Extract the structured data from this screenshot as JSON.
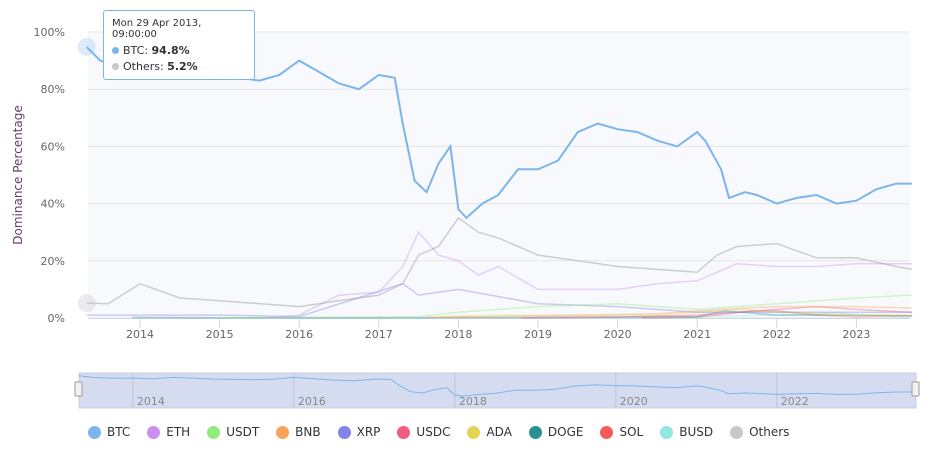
{
  "chart_data": {
    "type": "line",
    "ylabel": "Dominance Percentage",
    "ylim": [
      0,
      100
    ],
    "y_ticks": [
      "0%",
      "20%",
      "40%",
      "60%",
      "80%",
      "100%"
    ],
    "x_ticks": [
      "2014",
      "2015",
      "2016",
      "2017",
      "2018",
      "2019",
      "2020",
      "2021",
      "2022",
      "2023"
    ],
    "navigator_ticks": [
      "2014",
      "2016",
      "2018",
      "2020",
      "2022"
    ],
    "grid": true,
    "legend_position": "bottom",
    "series": [
      {
        "name": "BTC",
        "color": "#7cb5ec",
        "x": [
          2013.33,
          2013.5,
          2013.75,
          2014.0,
          2014.25,
          2014.5,
          2014.75,
          2015.0,
          2015.25,
          2015.5,
          2015.75,
          2016.0,
          2016.25,
          2016.5,
          2016.75,
          2017.0,
          2017.2,
          2017.3,
          2017.45,
          2017.6,
          2017.75,
          2017.9,
          2018.0,
          2018.1,
          2018.3,
          2018.5,
          2018.75,
          2019.0,
          2019.25,
          2019.5,
          2019.75,
          2020.0,
          2020.25,
          2020.5,
          2020.75,
          2021.0,
          2021.1,
          2021.3,
          2021.4,
          2021.6,
          2021.75,
          2022.0,
          2022.25,
          2022.5,
          2022.75,
          2023.0,
          2023.25,
          2023.5,
          2023.7
        ],
        "values": [
          94.8,
          90,
          88,
          88,
          86,
          90,
          88,
          85,
          84,
          83,
          85,
          90,
          86,
          82,
          80,
          85,
          84,
          68,
          48,
          44,
          54,
          60,
          38,
          35,
          40,
          43,
          52,
          52,
          55,
          65,
          68,
          66,
          65,
          62,
          60,
          65,
          62,
          52,
          42,
          44,
          43,
          40,
          42,
          43,
          40,
          41,
          45,
          47,
          47
        ]
      },
      {
        "name": "ETH",
        "color": "#c990ee",
        "x": [
          2015.6,
          2016.0,
          2016.5,
          2017.0,
          2017.3,
          2017.5,
          2017.75,
          2018.0,
          2018.25,
          2018.5,
          2019.0,
          2019.5,
          2020.0,
          2020.5,
          2021.0,
          2021.5,
          2022.0,
          2022.5,
          2023.0,
          2023.5,
          2023.7
        ],
        "values": [
          0,
          1,
          8,
          9,
          18,
          30,
          22,
          20,
          15,
          18,
          10,
          10,
          10,
          12,
          13,
          19,
          18,
          18,
          19,
          19,
          19
        ]
      },
      {
        "name": "USDT",
        "color": "#90ed7d",
        "x": [
          2015.0,
          2017.5,
          2018.0,
          2019.0,
          2020.0,
          2021.0,
          2022.0,
          2023.0,
          2023.7
        ],
        "values": [
          0.1,
          0.5,
          2,
          4,
          5,
          3,
          5,
          7,
          8
        ]
      },
      {
        "name": "BNB",
        "color": "#f7a35c",
        "x": [
          2017.6,
          2018.5,
          2019.5,
          2020.5,
          2021.3,
          2022.0,
          2023.0,
          2023.7
        ],
        "values": [
          0.2,
          0.5,
          1,
          1.5,
          3,
          4,
          4,
          3.5
        ]
      },
      {
        "name": "XRP",
        "color": "#8085e9",
        "x": [
          2013.33,
          2014.0,
          2015.0,
          2016.0,
          2017.3,
          2017.5,
          2018.0,
          2019.0,
          2020.0,
          2021.0,
          2022.0,
          2023.0,
          2023.7
        ],
        "values": [
          1,
          1,
          1,
          0.5,
          12,
          8,
          10,
          5,
          4,
          2,
          2,
          2,
          2
        ]
      },
      {
        "name": "USDC",
        "color": "#f15c80",
        "x": [
          2018.8,
          2020.0,
          2021.0,
          2022.0,
          2022.5,
          2023.0,
          2023.7
        ],
        "values": [
          0,
          0.3,
          1,
          3,
          4,
          3,
          2
        ]
      },
      {
        "name": "ADA",
        "color": "#e4d354",
        "x": [
          2017.75,
          2018.5,
          2019.5,
          2020.5,
          2021.5,
          2022.0,
          2023.0,
          2023.7
        ],
        "values": [
          0.5,
          1,
          0.8,
          1,
          3,
          2,
          1,
          1
        ]
      },
      {
        "name": "DOGE",
        "color": "#2b908f",
        "x": [
          2013.9,
          2015.0,
          2017.0,
          2019.0,
          2021.0,
          2021.35,
          2022.0,
          2023.0,
          2023.7
        ],
        "values": [
          0.2,
          0.1,
          0.1,
          0.2,
          0.5,
          2.5,
          1,
          1,
          0.8
        ]
      },
      {
        "name": "SOL",
        "color": "#f45b5b",
        "x": [
          2020.3,
          2021.0,
          2021.7,
          2022.0,
          2022.5,
          2023.0,
          2023.7
        ],
        "values": [
          0,
          0.3,
          2.5,
          2.5,
          1,
          0.5,
          0.8
        ]
      },
      {
        "name": "BUSD",
        "color": "#91e8e1",
        "x": [
          2019.7,
          2021.0,
          2022.0,
          2022.75,
          2023.2,
          2023.7
        ],
        "values": [
          0,
          0.5,
          1,
          1.8,
          0.8,
          0.3
        ]
      },
      {
        "name": "Others",
        "color": "#c8c8c8",
        "x": [
          2013.33,
          2013.6,
          2014.0,
          2014.5,
          2015.0,
          2016.0,
          2016.5,
          2017.0,
          2017.3,
          2017.5,
          2017.75,
          2018.0,
          2018.25,
          2018.5,
          2018.75,
          2019.0,
          2019.5,
          2020.0,
          2020.5,
          2021.0,
          2021.25,
          2021.5,
          2022.0,
          2022.5,
          2023.0,
          2023.5,
          2023.7
        ],
        "values": [
          5.2,
          5,
          12,
          7,
          6,
          4,
          6,
          8,
          12,
          22,
          25,
          35,
          30,
          28,
          25,
          22,
          20,
          18,
          17,
          16,
          22,
          25,
          26,
          21,
          21,
          18,
          17
        ]
      }
    ],
    "tooltip": {
      "date": "Mon 29 Apr 2013, 09:00:00",
      "rows": [
        {
          "name": "BTC",
          "value": "94.8%"
        },
        {
          "name": "Others",
          "value": "5.2%"
        }
      ]
    }
  }
}
